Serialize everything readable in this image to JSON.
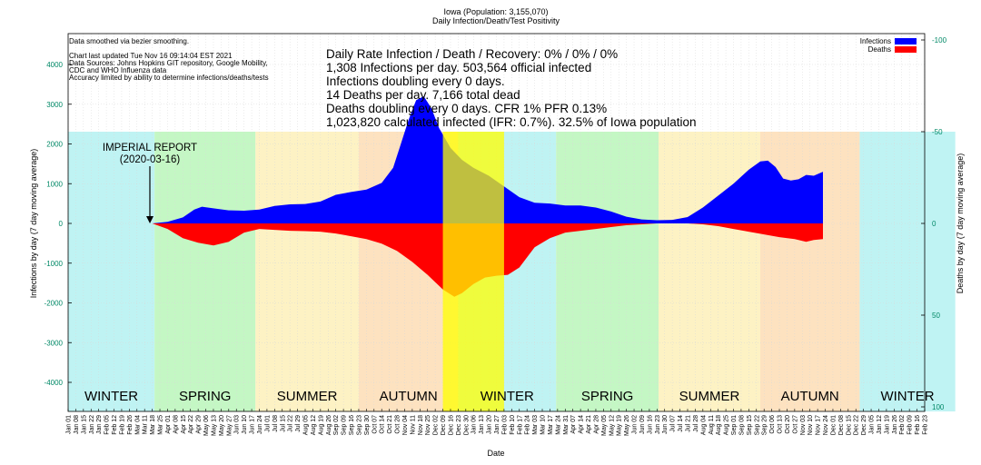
{
  "chart_data": {
    "type": "area",
    "title": "Iowa (Population: 3,155,070)",
    "subtitle": "Daily Infection/Death/Test Positivity",
    "xlabel": "Date",
    "ylabel_left": "Infections by day (7 day moving average)",
    "ylabel_right": "Deaths by day (7 day moving average)",
    "ylim_left": [
      -4500,
      4500
    ],
    "ylim_right": [
      100,
      -100
    ],
    "yticks_left": [
      -4000,
      -3000,
      -2000,
      -1000,
      0,
      1000,
      2000,
      3000,
      4000
    ],
    "yticks_left_labels": [
      "-4000",
      "-3000",
      "-2000",
      "-1000",
      "0",
      "1000",
      "2000",
      "3000",
      "4000"
    ],
    "yticks_right": [
      -100,
      -50,
      0,
      50,
      100
    ],
    "yticks_right_labels": [
      "-100",
      "-50",
      "0",
      "50",
      "100"
    ],
    "x_tick_labels": [
      "Jan 01",
      "Jan 08",
      "Jan 15",
      "Jan 22",
      "Jan 29",
      "Feb 05",
      "Feb 12",
      "Feb 19",
      "Feb 26",
      "Mar 04",
      "Mar 11",
      "Mar 18",
      "Mar 25",
      "Apr 01",
      "Apr 08",
      "Apr 15",
      "Apr 22",
      "Apr 29",
      "May 06",
      "May 13",
      "May 20",
      "May 27",
      "Jun 03",
      "Jun 10",
      "Jun 17",
      "Jun 24",
      "Jul 01",
      "Jul 08",
      "Jul 15",
      "Jul 22",
      "Jul 29",
      "Aug 05",
      "Aug 12",
      "Aug 19",
      "Aug 26",
      "Sep 02",
      "Sep 09",
      "Sep 16",
      "Sep 23",
      "Sep 30",
      "Oct 07",
      "Oct 14",
      "Oct 21",
      "Oct 28",
      "Nov 04",
      "Nov 11",
      "Nov 18",
      "Nov 25",
      "Dec 02",
      "Dec 09",
      "Dec 16",
      "Dec 23",
      "Dec 30",
      "Jan 06",
      "Jan 13",
      "Jan 20",
      "Jan 27",
      "Feb 03",
      "Feb 10",
      "Feb 17",
      "Feb 24",
      "Mar 03",
      "Mar 10",
      "Mar 17",
      "Mar 24",
      "Mar 31",
      "Apr 07",
      "Apr 14",
      "Apr 21",
      "Apr 28",
      "May 05",
      "May 12",
      "May 19",
      "May 26",
      "Jun 02",
      "Jun 09",
      "Jun 16",
      "Jun 23",
      "Jun 30",
      "Jul 07",
      "Jul 14",
      "Jul 21",
      "Jul 28",
      "Aug 04",
      "Aug 11",
      "Aug 18",
      "Aug 25",
      "Sep 01",
      "Sep 08",
      "Sep 15",
      "Sep 22",
      "Sep 29",
      "Oct 06",
      "Oct 13",
      "Oct 20",
      "Oct 27",
      "Nov 03",
      "Nov 10",
      "Nov 17",
      "Nov 24",
      "Dec 01",
      "Dec 08",
      "Dec 15",
      "Dec 22",
      "Dec 29",
      "Jan 05",
      "Jan 12",
      "Jan 19",
      "Jan 26",
      "Feb 02",
      "Feb 09",
      "Feb 16",
      "Feb 23"
    ],
    "seasons": [
      {
        "name": "WINTER",
        "start_week": 0,
        "end_week": 11.3,
        "color": "#bff3f3"
      },
      {
        "name": "SPRING",
        "start_week": 11.3,
        "end_week": 24.5,
        "color": "#c4f7c4"
      },
      {
        "name": "SUMMER",
        "start_week": 24.5,
        "end_week": 38,
        "color": "#fdf2c4"
      },
      {
        "name": "AUTUMN",
        "start_week": 38,
        "end_week": 51,
        "color": "#fde2c0"
      },
      {
        "name": "WINTER",
        "start_week": 51,
        "end_week": 63.8,
        "color": "#bff3f3"
      },
      {
        "name": "SPRING",
        "start_week": 63.8,
        "end_week": 77.2,
        "color": "#c4f7c4"
      },
      {
        "name": "SUMMER",
        "start_week": 77.2,
        "end_week": 90.5,
        "color": "#fdf2c4"
      },
      {
        "name": "AUTUMN",
        "start_week": 90.5,
        "end_week": 103.5,
        "color": "#fde2c0"
      },
      {
        "name": "WINTER",
        "start_week": 103.5,
        "end_week": 116,
        "color": "#bff3f3"
      }
    ],
    "holiday_bands": [
      {
        "start_week": 49,
        "end_week": 57,
        "color": "#ffff00",
        "opacity": 0.75
      }
    ],
    "annotation": {
      "line1": "IMPERIAL REPORT",
      "line2": "(2020-03-16)",
      "week": 11
    },
    "series": [
      {
        "name": "Infections",
        "axis": "left",
        "color": "#0000ff",
        "points": [
          [
            11,
            0
          ],
          [
            13,
            40
          ],
          [
            15,
            150
          ],
          [
            16.5,
            350
          ],
          [
            17.5,
            420
          ],
          [
            19,
            380
          ],
          [
            21,
            330
          ],
          [
            23,
            320
          ],
          [
            25,
            350
          ],
          [
            27,
            440
          ],
          [
            29,
            480
          ],
          [
            31,
            490
          ],
          [
            33,
            550
          ],
          [
            35,
            720
          ],
          [
            37,
            790
          ],
          [
            39,
            850
          ],
          [
            41,
            1020
          ],
          [
            42.5,
            1400
          ],
          [
            43.5,
            2000
          ],
          [
            44.5,
            2600
          ],
          [
            45.5,
            3100
          ],
          [
            46.5,
            3200
          ],
          [
            47.5,
            2900
          ],
          [
            48.5,
            2400
          ],
          [
            50,
            1900
          ],
          [
            51.5,
            1600
          ],
          [
            53,
            1400
          ],
          [
            55,
            1200
          ],
          [
            57,
            930
          ],
          [
            59,
            660
          ],
          [
            61,
            520
          ],
          [
            63,
            500
          ],
          [
            65,
            450
          ],
          [
            67,
            450
          ],
          [
            69,
            400
          ],
          [
            71,
            300
          ],
          [
            73,
            170
          ],
          [
            75,
            100
          ],
          [
            77,
            80
          ],
          [
            79,
            90
          ],
          [
            81,
            160
          ],
          [
            83,
            400
          ],
          [
            85,
            700
          ],
          [
            87,
            1000
          ],
          [
            89,
            1350
          ],
          [
            90.5,
            1560
          ],
          [
            91.5,
            1580
          ],
          [
            92.5,
            1420
          ],
          [
            93.5,
            1130
          ],
          [
            94.5,
            1080
          ],
          [
            95.5,
            1110
          ],
          [
            96.5,
            1220
          ],
          [
            97.5,
            1200
          ],
          [
            98.7,
            1300
          ],
          [
            98.7,
            0
          ]
        ]
      },
      {
        "name": "Deaths",
        "axis": "right",
        "color": "#ff0000",
        "points": [
          [
            11,
            0
          ],
          [
            13,
            3
          ],
          [
            15,
            8
          ],
          [
            17,
            10.5
          ],
          [
            19,
            12
          ],
          [
            21,
            10
          ],
          [
            23,
            5
          ],
          [
            25,
            3
          ],
          [
            27,
            3.5
          ],
          [
            29,
            4
          ],
          [
            31,
            4.2
          ],
          [
            33,
            4.5
          ],
          [
            35,
            5.5
          ],
          [
            37,
            7
          ],
          [
            39,
            8.5
          ],
          [
            41,
            11
          ],
          [
            43,
            15
          ],
          [
            45,
            21
          ],
          [
            47,
            28
          ],
          [
            49,
            36
          ],
          [
            50.5,
            40
          ],
          [
            51.5,
            38
          ],
          [
            53,
            33
          ],
          [
            54.5,
            29.5
          ],
          [
            56,
            28.5
          ],
          [
            57.5,
            28
          ],
          [
            59,
            24
          ],
          [
            61,
            13
          ],
          [
            63,
            8
          ],
          [
            65,
            5
          ],
          [
            67,
            4
          ],
          [
            69,
            3
          ],
          [
            71,
            2
          ],
          [
            73,
            1
          ],
          [
            75,
            0.5
          ],
          [
            77,
            0
          ],
          [
            79,
            0
          ],
          [
            81,
            0
          ],
          [
            83,
            0.5
          ],
          [
            85,
            1.5
          ],
          [
            87,
            3
          ],
          [
            89,
            4.5
          ],
          [
            91,
            6
          ],
          [
            93,
            7.5
          ],
          [
            95,
            8.5
          ],
          [
            96.5,
            10
          ],
          [
            97.5,
            9
          ],
          [
            98.7,
            8.5
          ],
          [
            98.7,
            0
          ]
        ]
      }
    ],
    "legend": {
      "placement": "top-right",
      "entries": [
        "Infections",
        "Deaths"
      ]
    },
    "info_small": [
      "Data smoothed via bezier smoothing.",
      "",
      "Chart last updated Tue Nov 16 09:14:04 EST 2021",
      "Data Sources: Johns Hopkins GIT repository, Google Mobility,",
      "CDC and WHO Influenza data",
      "Accuracy limited by ability to determine infections/deaths/tests"
    ],
    "info_large": [
      "Daily Rate Infection / Death / Recovery: 0% / 0% / 0%",
      "1,308 Infections per day.  503,564 official infected",
      "Infections doubling every 0 days.",
      "14 Deaths per day.  7,166 total dead",
      "Deaths doubling every 0 days.  CFR 1%  PFR 0.13%",
      "1,023,820 calculated infected (IFR: 0.7%).  32.5% of Iowa population"
    ],
    "axis_color": "#008866",
    "grid": true
  }
}
